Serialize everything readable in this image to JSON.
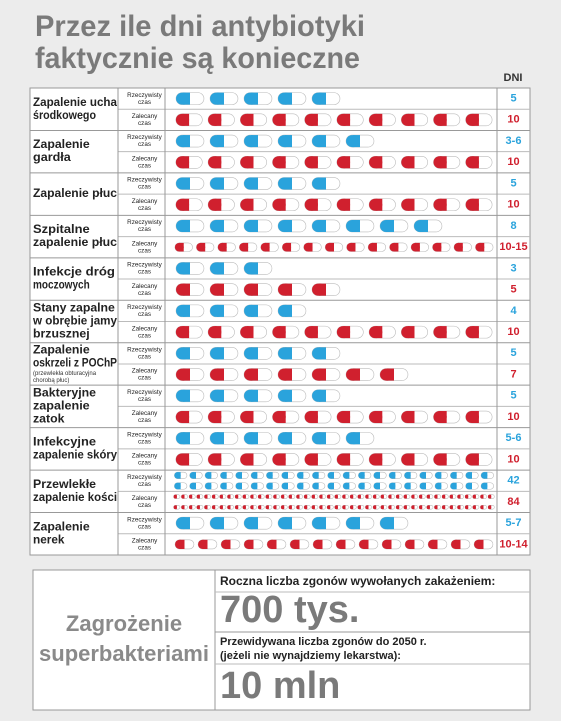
{
  "title": [
    "Przez ile dni antybiotyki",
    "faktycznie są konieczne"
  ],
  "days_header": "DNI",
  "row_labels": {
    "actual": [
      "Rzeczywisty",
      "czas"
    ],
    "recommended": [
      "Zalecany",
      "czas"
    ]
  },
  "colors": {
    "actual": "#2aa3dc",
    "recommended": "#d0202e"
  },
  "conditions": [
    {
      "name": [
        "Zapalenie ucha",
        "środkowego"
      ],
      "actual": 5,
      "recommended": 10
    },
    {
      "name": [
        "Zapalenie",
        "gardła"
      ],
      "actual": {
        "min": 3,
        "max": 6,
        "label": "3-6"
      },
      "recommended": 10
    },
    {
      "name": [
        "Zapalenie płuc"
      ],
      "actual": 5,
      "recommended": 10
    },
    {
      "name": [
        "Szpitalne",
        "zapalenie płuc"
      ],
      "actual": 8,
      "recommended": {
        "min": 10,
        "max": 15,
        "label": "10-15"
      }
    },
    {
      "name": [
        "Infekcje dróg",
        "moczowych"
      ],
      "actual": 3,
      "recommended": 5
    },
    {
      "name": [
        "Stany zapalne",
        "w obrębie jamy",
        "brzusznej"
      ],
      "actual": 4,
      "recommended": 10
    },
    {
      "name": [
        "Zapalenie",
        "oskrzeli z POChP"
      ],
      "note": [
        "(przewlekła obturacyjna",
        "chorobą płuc)"
      ],
      "actual": 5,
      "recommended": 7
    },
    {
      "name": [
        "Bakteryjne",
        "zapalenie",
        "zatok"
      ],
      "actual": 5,
      "recommended": 10
    },
    {
      "name": [
        "Infekcyjne",
        "zapalenie skóry"
      ],
      "actual": {
        "min": 5,
        "max": 6,
        "label": "5-6"
      },
      "recommended": 10
    },
    {
      "name": [
        "Przewlekłe",
        "zapalenie kości"
      ],
      "actual": 42,
      "recommended": 84
    },
    {
      "name": [
        "Zapalenie",
        "nerek"
      ],
      "actual": {
        "min": 5,
        "max": 7,
        "label": "5-7"
      },
      "recommended": {
        "min": 10,
        "max": 14,
        "label": "10-14"
      }
    }
  ],
  "box": {
    "heading": [
      "Zagrożenie",
      "superbakteriami"
    ],
    "annual_label": "Roczna liczba zgonów wywołanych zakażeniem:",
    "annual_value": "700 tys.",
    "forecast_label": [
      "Przewidywana liczba zgonów do 2050 r.",
      "(jeżeli nie wynajdziemy lekarstwa):"
    ],
    "forecast_value": "10 mln"
  }
}
